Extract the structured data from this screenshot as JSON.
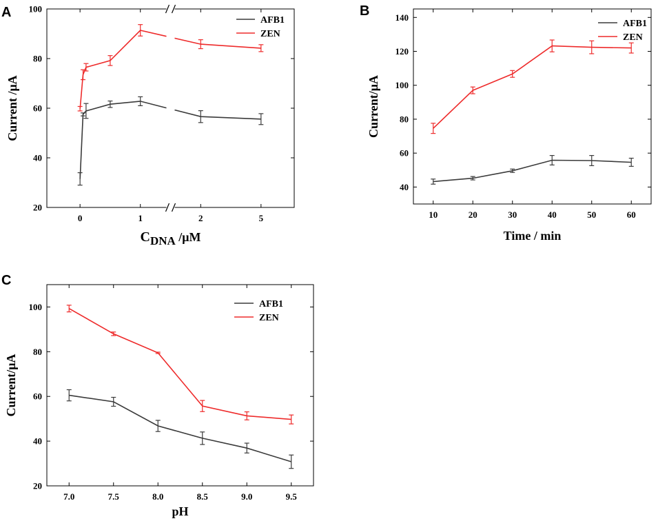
{
  "chart_data": [
    {
      "panel": "A",
      "type": "line",
      "xlabel_main": "C",
      "xlabel_sub": "DNA",
      "xlabel_unit": " /μM",
      "ylabel": "Current /μA",
      "ylim": [
        20,
        100
      ],
      "yticks": [
        20,
        40,
        60,
        80,
        100
      ],
      "x_axis_break": "between 1 and 2",
      "xticks": [
        {
          "pos": 0,
          "label": "0"
        },
        {
          "pos": 1,
          "label": "1"
        },
        {
          "pos": 2,
          "label": "2"
        },
        {
          "pos": 3,
          "label": "5"
        }
      ],
      "series": [
        {
          "name": "AFB1",
          "color": "#3a3a3a",
          "x": [
            0,
            0.05,
            0.1,
            0.5,
            1,
            2,
            3
          ],
          "values": [
            31.5,
            57.5,
            58.9,
            61.6,
            62.8,
            56.6,
            55.6
          ],
          "errors": [
            2.5,
            0.6,
            3.0,
            1.3,
            1.8,
            2.4,
            2.2
          ]
        },
        {
          "name": "ZEN",
          "color": "#ee2a2a",
          "x": [
            0,
            0.05,
            0.1,
            0.5,
            1,
            2,
            3
          ],
          "values": [
            59.8,
            73.5,
            76.5,
            79.2,
            91.4,
            85.8,
            84.2
          ],
          "errors": [
            0.9,
            2.0,
            1.5,
            2.0,
            2.3,
            1.8,
            1.4
          ]
        }
      ],
      "legend_position": "top-right"
    },
    {
      "panel": "B",
      "type": "line",
      "xlabel": "Time / min",
      "ylabel": "Current/μA",
      "xlim": [
        5,
        65
      ],
      "ylim": [
        30,
        145
      ],
      "xticks": [
        10,
        20,
        30,
        40,
        50,
        60
      ],
      "yticks": [
        40,
        60,
        80,
        100,
        120,
        140
      ],
      "series": [
        {
          "name": "AFB1",
          "color": "#3a3a3a",
          "x": [
            10,
            20,
            30,
            40,
            50,
            60
          ],
          "values": [
            43.2,
            45.2,
            49.6,
            55.8,
            55.6,
            54.6
          ],
          "errors": [
            1.5,
            1.0,
            1.0,
            2.8,
            3.0,
            2.4
          ]
        },
        {
          "name": "ZEN",
          "color": "#ee2a2a",
          "x": [
            10,
            20,
            30,
            40,
            50,
            60
          ],
          "values": [
            74.6,
            97.0,
            106.7,
            123.2,
            122.4,
            122.0
          ],
          "errors": [
            3.0,
            2.0,
            2.0,
            3.5,
            3.8,
            3.0
          ]
        }
      ],
      "legend_position": "top-right"
    },
    {
      "panel": "C",
      "type": "line",
      "xlabel": "pH",
      "ylabel": "Current/μA",
      "xlim": [
        6.75,
        9.75
      ],
      "ylim": [
        20,
        110
      ],
      "xticks": [
        7.0,
        7.5,
        8.0,
        8.5,
        9.0,
        9.5
      ],
      "xtick_labels": [
        "7.0",
        "7.5",
        "8.0",
        "8.5",
        "9.0",
        "9.5"
      ],
      "yticks": [
        20,
        40,
        60,
        80,
        100
      ],
      "series": [
        {
          "name": "AFB1",
          "color": "#3a3a3a",
          "x": [
            7.0,
            7.5,
            8.0,
            8.5,
            9.0,
            9.5
          ],
          "values": [
            60.5,
            57.6,
            46.8,
            41.3,
            36.9,
            30.8
          ],
          "errors": [
            2.5,
            2.0,
            2.5,
            2.8,
            2.2,
            3.0
          ]
        },
        {
          "name": "ZEN",
          "color": "#ee2a2a",
          "x": [
            7.0,
            7.5,
            8.0,
            8.5,
            9.0,
            9.5
          ],
          "values": [
            99.3,
            88.0,
            79.5,
            55.7,
            51.3,
            49.7
          ],
          "errors": [
            1.5,
            0.8,
            0.3,
            2.5,
            1.8,
            2.0
          ]
        }
      ],
      "legend_position": "top-right"
    }
  ]
}
